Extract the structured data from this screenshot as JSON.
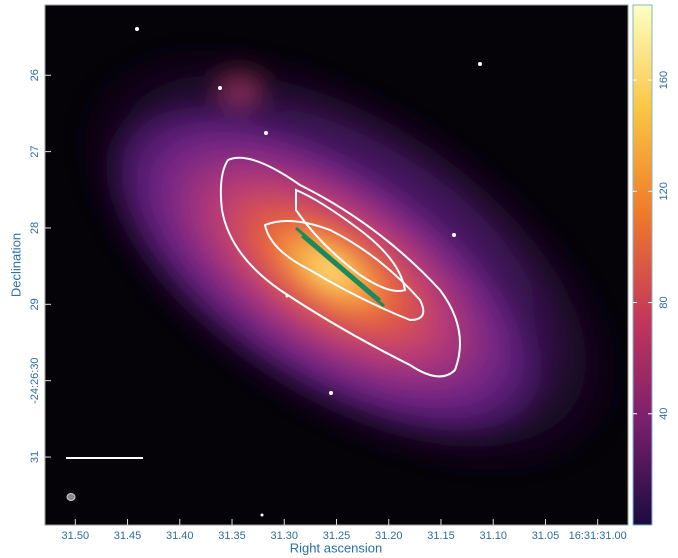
{
  "chart_data": {
    "type": "image",
    "x_label": "Right ascension",
    "y_label": "Declination",
    "xlim": [
      31.529,
      30.971
    ],
    "xticks": [
      {
        "value": 31.5,
        "label": "31.50"
      },
      {
        "value": 31.45,
        "label": "31.45"
      },
      {
        "value": 31.4,
        "label": "31.40"
      },
      {
        "value": 31.35,
        "label": "31.35"
      },
      {
        "value": 31.3,
        "label": "31.30"
      },
      {
        "value": 31.25,
        "label": "31.25"
      },
      {
        "value": 31.2,
        "label": "31.20"
      },
      {
        "value": 31.15,
        "label": "31.15"
      },
      {
        "value": 31.1,
        "label": "31.10"
      },
      {
        "value": 31.05,
        "label": "31.05"
      },
      {
        "value": 31.0,
        "label": "16:31:31.00"
      }
    ],
    "ylim": [
      25.08,
      31.89
    ],
    "yticks": [
      26,
      27,
      28,
      29,
      {
        "value": 30,
        "label": "-24:26:30"
      },
      31
    ],
    "colorbar": {
      "clim": [
        0,
        187
      ],
      "ticks": [
        40,
        80,
        120,
        160
      ],
      "colormap": "inferno"
    }
  }
}
